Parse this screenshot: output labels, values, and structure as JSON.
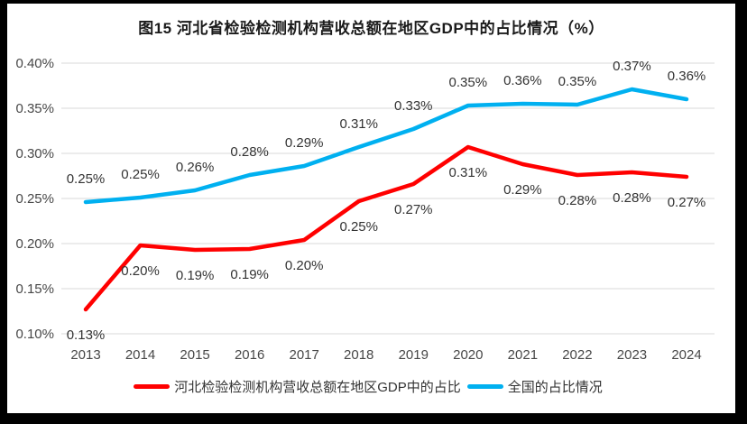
{
  "chart_data": {
    "type": "line",
    "title": "图15 河北省检验检测机构营收总额在地区GDP中的占比情况（%）",
    "categories": [
      "2013",
      "2014",
      "2015",
      "2016",
      "2017",
      "2018",
      "2019",
      "2020",
      "2021",
      "2022",
      "2023",
      "2024"
    ],
    "series": [
      {
        "name": "河北检验检测机构营收总额在地区GDP中的占比",
        "color": "#FF0000",
        "values": [
          0.127,
          0.198,
          0.193,
          0.194,
          0.204,
          0.247,
          0.266,
          0.307,
          0.288,
          0.276,
          0.279,
          0.274
        ],
        "labels": [
          "0.13%",
          "0.20%",
          "0.19%",
          "0.19%",
          "0.20%",
          "0.25%",
          "0.27%",
          "0.31%",
          "0.29%",
          "0.28%",
          "0.28%",
          "0.27%"
        ],
        "label_position": "below"
      },
      {
        "name": "全国的占比情况",
        "color": "#00B0F0",
        "values": [
          0.246,
          0.251,
          0.259,
          0.276,
          0.286,
          0.307,
          0.327,
          0.353,
          0.355,
          0.354,
          0.371,
          0.36
        ],
        "labels": [
          "0.25%",
          "0.25%",
          "0.26%",
          "0.28%",
          "0.29%",
          "0.31%",
          "0.33%",
          "0.35%",
          "0.36%",
          "0.35%",
          "0.37%",
          "0.36%"
        ],
        "label_position": "above"
      }
    ],
    "y_axis": {
      "min": 0.1,
      "max": 0.4,
      "step": 0.05,
      "ticks": [
        {
          "value": 0.1,
          "label": "0.10%"
        },
        {
          "value": 0.15,
          "label": "0.15%"
        },
        {
          "value": 0.2,
          "label": "0.20%"
        },
        {
          "value": 0.25,
          "label": "0.25%"
        },
        {
          "value": 0.3,
          "label": "0.30%"
        },
        {
          "value": 0.35,
          "label": "0.35%"
        },
        {
          "value": 0.4,
          "label": "0.40%"
        }
      ]
    },
    "grid": true,
    "legend_position": "bottom",
    "colors": {
      "gridline": "#D9D9D9",
      "tick_text": "#474747",
      "data_label_text": "#333333",
      "title_text": "#1A1A1A",
      "frame": "#000000",
      "background": "#FFFFFF"
    }
  }
}
